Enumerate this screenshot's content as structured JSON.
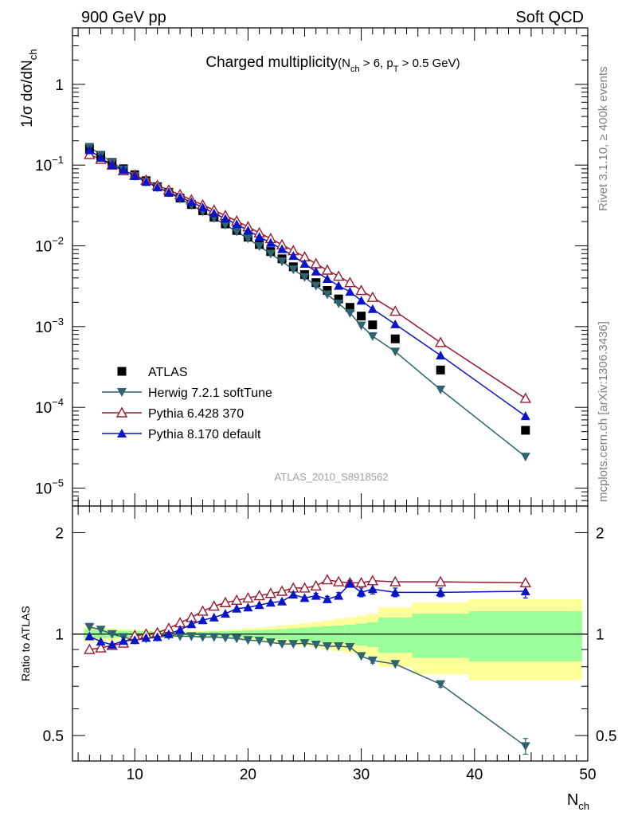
{
  "header": {
    "left": "900 GeV pp",
    "right": "Soft QCD",
    "side_top": "Rivet 3.1.10, ≥ 400k events",
    "side_bottom": "mcplots.cern.ch [arXiv:1306.3436]",
    "analysis": "ATLAS_2010_S8918562"
  },
  "chart_data": [
    {
      "type": "scatter",
      "title_main": "Charged multiplicity",
      "title_cut": "(N",
      "title_cut_sub": "ch",
      "title_cut_mid": " > 6, p",
      "title_cut_sub2": "T",
      "title_cut_end": " > 0.5 GeV)",
      "ylabel_prefix": "1/σ dσ/dN",
      "ylabel_sub": "ch",
      "yscale": "log",
      "ylim": [
        6e-06,
        5
      ],
      "xlim": [
        4.5,
        50
      ],
      "y_ticks": [
        {
          "v": 1,
          "base": "1",
          "exp": ""
        },
        {
          "v": 0.1,
          "base": "10",
          "exp": "−1"
        },
        {
          "v": 0.01,
          "base": "10",
          "exp": "−2"
        },
        {
          "v": 0.001,
          "base": "10",
          "exp": "−3"
        },
        {
          "v": 0.0001,
          "base": "10",
          "exp": "−4"
        },
        {
          "v": 1e-05,
          "base": "10",
          "exp": "−5"
        }
      ],
      "legend_position": "lower-left",
      "series": [
        {
          "name": "ATLAS",
          "color": "#000000",
          "marker": "square",
          "x": [
            6,
            7,
            8,
            9,
            10,
            11,
            12,
            13,
            14,
            15,
            16,
            17,
            18,
            19,
            20,
            21,
            22,
            23,
            24,
            25,
            26,
            27,
            28,
            29,
            30,
            31,
            33,
            37,
            44.5
          ],
          "y": [
            0.16,
            0.13,
            0.108,
            0.09,
            0.076,
            0.064,
            0.054,
            0.046,
            0.039,
            0.0325,
            0.0272,
            0.0226,
            0.0187,
            0.0155,
            0.0128,
            0.0104,
            0.0085,
            0.0069,
            0.0055,
            0.0044,
            0.0035,
            0.0028,
            0.0022,
            0.00173,
            0.00135,
            0.00105,
            0.000705,
            0.00029,
            5.2e-05
          ]
        },
        {
          "name": "Herwig 7.2.1 softTune",
          "color": "#2e6470",
          "marker": "triangle-down",
          "x": [
            6,
            7,
            8,
            9,
            10,
            11,
            12,
            13,
            14,
            15,
            16,
            17,
            18,
            19,
            20,
            21,
            22,
            23,
            24,
            25,
            26,
            27,
            28,
            29,
            30,
            31,
            33,
            37,
            44.5
          ],
          "y": [
            0.168,
            0.134,
            0.108,
            0.088,
            0.073,
            0.062,
            0.053,
            0.0455,
            0.0384,
            0.032,
            0.0267,
            0.0221,
            0.0182,
            0.015,
            0.0123,
            0.0099,
            0.008,
            0.0064,
            0.0051,
            0.0041,
            0.0032,
            0.0025,
            0.00193,
            0.00147,
            0.00103,
            0.00076,
            0.00049,
            0.000166,
            2.45e-05
          ]
        },
        {
          "name": "Pythia 6.428 370",
          "color": "#9a1b2e",
          "marker": "triangle-up-open",
          "x": [
            6,
            7,
            8,
            9,
            10,
            11,
            12,
            13,
            14,
            15,
            16,
            17,
            18,
            19,
            20,
            21,
            22,
            23,
            24,
            25,
            26,
            27,
            28,
            29,
            30,
            31,
            33,
            37,
            44.5
          ],
          "y": [
            0.135,
            0.118,
            0.1,
            0.085,
            0.075,
            0.065,
            0.056,
            0.049,
            0.043,
            0.0371,
            0.0321,
            0.0277,
            0.0237,
            0.0203,
            0.0172,
            0.0145,
            0.0123,
            0.0103,
            0.0087,
            0.0073,
            0.006,
            0.005,
            0.0042,
            0.0035,
            0.0028,
            0.0023,
            0.00155,
            0.000635,
            0.000129
          ]
        },
        {
          "name": "Pythia 8.170 default",
          "color": "#0a14c8",
          "marker": "triangle-up",
          "x": [
            6,
            7,
            8,
            9,
            10,
            11,
            12,
            13,
            14,
            15,
            16,
            17,
            18,
            19,
            20,
            21,
            22,
            23,
            24,
            25,
            26,
            27,
            28,
            29,
            30,
            31,
            33,
            37,
            44.5
          ],
          "y": [
            0.153,
            0.123,
            0.1,
            0.087,
            0.073,
            0.062,
            0.053,
            0.046,
            0.04,
            0.0349,
            0.0299,
            0.0253,
            0.0217,
            0.0185,
            0.0155,
            0.0129,
            0.0109,
            0.0091,
            0.0075,
            0.006,
            0.0048,
            0.0039,
            0.0032,
            0.0027,
            0.0021,
            0.00165,
            0.00107,
            0.00044,
            7.8e-05
          ]
        }
      ]
    },
    {
      "type": "scatter",
      "ylabel": "Ratio to ATLAS",
      "xlabel_prefix": "N",
      "xlabel_sub": "ch",
      "yscale": "log",
      "ylim": [
        0.42,
        2.4
      ],
      "xlim": [
        4.5,
        50
      ],
      "x_ticks": [
        10,
        20,
        30,
        40,
        50
      ],
      "y_ticks": [
        0.5,
        1,
        2
      ],
      "reference_line": 1,
      "bands": {
        "x_edges": [
          5.5,
          6.5,
          7.5,
          8.5,
          9.5,
          10.5,
          11.5,
          12.5,
          13.5,
          14.5,
          15.5,
          16.5,
          17.5,
          18.5,
          19.5,
          20.5,
          21.5,
          22.5,
          23.5,
          24.5,
          25.5,
          26.5,
          27.5,
          28.5,
          29.5,
          30.5,
          31.5,
          34.5,
          39.5,
          49.5
        ],
        "green_half": [
          0.03,
          0.028,
          0.026,
          0.024,
          0.022,
          0.02,
          0.018,
          0.016,
          0.015,
          0.015,
          0.016,
          0.018,
          0.02,
          0.022,
          0.025,
          0.028,
          0.031,
          0.035,
          0.04,
          0.045,
          0.05,
          0.055,
          0.06,
          0.065,
          0.075,
          0.085,
          0.12,
          0.15,
          0.17
        ],
        "yellow_half": [
          0.05,
          0.045,
          0.04,
          0.036,
          0.032,
          0.028,
          0.025,
          0.022,
          0.02,
          0.02,
          0.022,
          0.025,
          0.03,
          0.035,
          0.04,
          0.046,
          0.052,
          0.06,
          0.068,
          0.077,
          0.087,
          0.098,
          0.11,
          0.12,
          0.135,
          0.15,
          0.2,
          0.24,
          0.27
        ]
      },
      "series": [
        {
          "name": "Herwig 7.2.1 softTune",
          "color": "#2e6470",
          "marker": "triangle-down",
          "x": [
            6,
            7,
            8,
            9,
            10,
            11,
            12,
            13,
            14,
            15,
            16,
            17,
            18,
            19,
            20,
            21,
            22,
            23,
            24,
            25,
            26,
            27,
            28,
            29,
            30,
            31,
            33,
            37,
            44.5
          ],
          "y": [
            1.05,
            1.03,
            1.0,
            0.98,
            0.96,
            0.97,
            0.98,
            0.99,
            0.985,
            0.985,
            0.98,
            0.98,
            0.975,
            0.97,
            0.96,
            0.955,
            0.945,
            0.935,
            0.935,
            0.94,
            0.93,
            0.92,
            0.92,
            0.915,
            0.86,
            0.835,
            0.815,
            0.71,
            0.465
          ],
          "err": [
            0.003,
            0.003,
            0.003,
            0.003,
            0.003,
            0.003,
            0.003,
            0.003,
            0.003,
            0.003,
            0.004,
            0.004,
            0.005,
            0.005,
            0.006,
            0.006,
            0.007,
            0.007,
            0.008,
            0.008,
            0.009,
            0.01,
            0.011,
            0.012,
            0.014,
            0.015,
            0.012,
            0.015,
            0.025
          ]
        },
        {
          "name": "Pythia 6.428 370",
          "color": "#9a1b2e",
          "marker": "triangle-up-open",
          "x": [
            6,
            7,
            8,
            9,
            10,
            11,
            12,
            13,
            14,
            15,
            16,
            17,
            18,
            19,
            20,
            21,
            22,
            23,
            24,
            25,
            26,
            27,
            28,
            29,
            30,
            31,
            33,
            37,
            44.5
          ],
          "y": [
            0.9,
            0.91,
            0.925,
            0.94,
            0.99,
            1.0,
            1.01,
            1.04,
            1.08,
            1.12,
            1.17,
            1.21,
            1.24,
            1.26,
            1.28,
            1.3,
            1.32,
            1.34,
            1.37,
            1.37,
            1.39,
            1.45,
            1.43,
            1.42,
            1.42,
            1.44,
            1.43,
            1.43,
            1.42
          ],
          "err": [
            0.003,
            0.003,
            0.003,
            0.003,
            0.003,
            0.003,
            0.003,
            0.003,
            0.003,
            0.003,
            0.004,
            0.004,
            0.005,
            0.005,
            0.006,
            0.006,
            0.007,
            0.007,
            0.008,
            0.008,
            0.009,
            0.01,
            0.011,
            0.012,
            0.014,
            0.015,
            0.012,
            0.015,
            0.02
          ]
        },
        {
          "name": "Pythia 8.170 default",
          "color": "#0a14c8",
          "marker": "triangle-up",
          "x": [
            6,
            7,
            8,
            9,
            10,
            11,
            12,
            13,
            14,
            15,
            16,
            17,
            18,
            19,
            20,
            21,
            22,
            23,
            24,
            25,
            26,
            27,
            28,
            29,
            30,
            31,
            33,
            37,
            44.5
          ],
          "y": [
            0.985,
            0.95,
            0.93,
            0.955,
            0.96,
            0.975,
            0.98,
            1.0,
            1.03,
            1.07,
            1.1,
            1.12,
            1.15,
            1.19,
            1.2,
            1.22,
            1.24,
            1.25,
            1.31,
            1.28,
            1.3,
            1.27,
            1.3,
            1.41,
            1.33,
            1.36,
            1.33,
            1.33,
            1.34
          ],
          "err": [
            0.005,
            0.005,
            0.005,
            0.005,
            0.005,
            0.005,
            0.005,
            0.005,
            0.006,
            0.006,
            0.007,
            0.007,
            0.008,
            0.009,
            0.01,
            0.011,
            0.013,
            0.015,
            0.017,
            0.02,
            0.022,
            0.025,
            0.028,
            0.032,
            0.04,
            0.045,
            0.04,
            0.04,
            0.06
          ]
        }
      ]
    }
  ]
}
